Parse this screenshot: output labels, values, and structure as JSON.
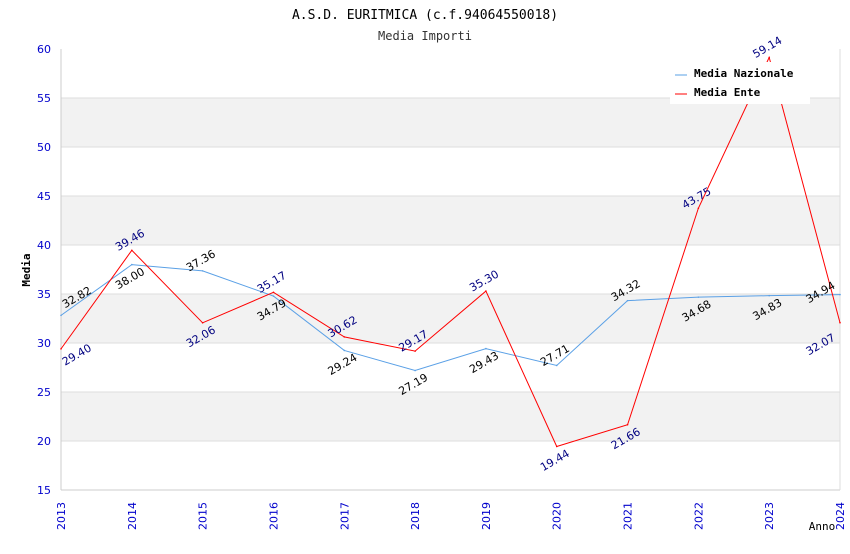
{
  "chart_data": {
    "type": "line",
    "title": "A.S.D. EURITMICA (c.f.94064550018)",
    "subtitle": "Media Importi",
    "xlabel": "Anno",
    "ylabel": "Media",
    "ylim": [
      15,
      60
    ],
    "yticks": [
      "15",
      "20",
      "25",
      "30",
      "35",
      "40",
      "45",
      "50",
      "55",
      "60"
    ],
    "categories": [
      "2013",
      "2014",
      "2015",
      "2016",
      "2017",
      "2018",
      "2019",
      "2020",
      "2021",
      "2022",
      "2023",
      "2024"
    ],
    "legend_position": "top-right",
    "grid": true,
    "series": [
      {
        "name": "Media Nazionale",
        "color": "#5aa0e6",
        "label_color": "#000000",
        "values": [
          32.82,
          38.0,
          37.36,
          34.79,
          29.24,
          27.19,
          29.43,
          27.71,
          34.32,
          34.68,
          34.83,
          34.94
        ],
        "labels": [
          "32.82",
          "38.00",
          "37.36",
          "34.79",
          "29.24",
          "27.19",
          "29.43",
          "27.71",
          "34.32",
          "34.68",
          "34.83",
          "34.94"
        ]
      },
      {
        "name": "Media Ente",
        "color": "#ff0000",
        "label_color": "#000080",
        "values": [
          29.4,
          39.46,
          32.06,
          35.17,
          30.62,
          29.17,
          35.3,
          19.44,
          21.66,
          43.75,
          59.14,
          32.07
        ],
        "labels": [
          "29.40",
          "39.46",
          "32.06",
          "35.17",
          "30.62",
          "29.17",
          "35.30",
          "19.44",
          "21.66",
          "43.75",
          "59.14",
          "32.07"
        ]
      }
    ]
  }
}
